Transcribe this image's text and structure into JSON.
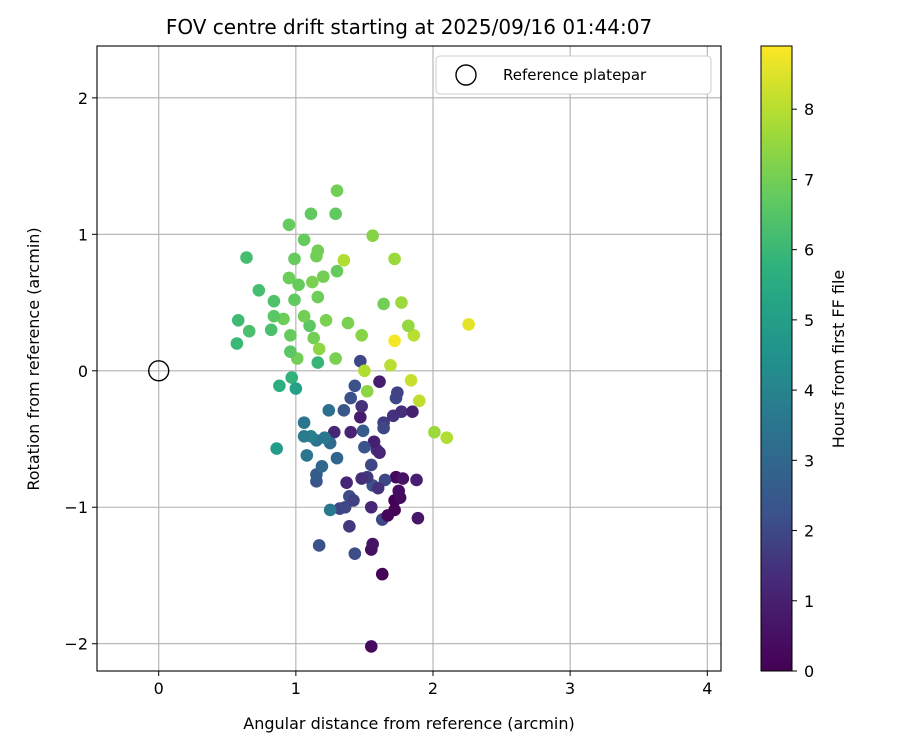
{
  "chart_data": {
    "type": "scatter",
    "title": "FOV centre drift starting at 2025/09/16 01:44:07",
    "xlabel": "Angular distance from reference (arcmin)",
    "ylabel": "Rotation from reference (arcmin)",
    "xlim": [
      -0.45,
      4.1
    ],
    "ylim": [
      -2.2,
      2.38
    ],
    "xticks": [
      0,
      1,
      2,
      3,
      4
    ],
    "xtick_labels": [
      "0",
      "1",
      "2",
      "3",
      "4"
    ],
    "yticks": [
      -2,
      -1,
      0,
      1,
      2
    ],
    "ytick_labels": [
      "−2",
      "−1",
      "0",
      "1",
      "2"
    ],
    "grid": true,
    "legend": {
      "location": "top-right",
      "entries": [
        "Reference platepar"
      ]
    },
    "reference_point": {
      "x": 0,
      "y": 0,
      "label": "Reference platepar"
    },
    "colorbar": {
      "label": "Hours from first FF file",
      "min": 0,
      "max": 8.9,
      "ticks": [
        0,
        1,
        2,
        3,
        4,
        5,
        6,
        7,
        8
      ],
      "colormap": "viridis"
    },
    "points": [
      {
        "x": 1.55,
        "y": -2.02,
        "h": 0.3
      },
      {
        "x": 1.63,
        "y": -1.49,
        "h": 0.1
      },
      {
        "x": 1.55,
        "y": -1.31,
        "h": 0.5
      },
      {
        "x": 1.56,
        "y": -1.27,
        "h": 0.6
      },
      {
        "x": 1.43,
        "y": -1.34,
        "h": 2.1
      },
      {
        "x": 1.17,
        "y": -1.28,
        "h": 2.2
      },
      {
        "x": 1.39,
        "y": -1.14,
        "h": 1.6
      },
      {
        "x": 1.63,
        "y": -1.09,
        "h": 2.0
      },
      {
        "x": 1.67,
        "y": -1.06,
        "h": 0.2
      },
      {
        "x": 1.72,
        "y": -1.02,
        "h": 0.1
      },
      {
        "x": 1.89,
        "y": -1.08,
        "h": 0.7
      },
      {
        "x": 1.55,
        "y": -1.0,
        "h": 1.2
      },
      {
        "x": 1.32,
        "y": -1.01,
        "h": 1.9
      },
      {
        "x": 1.36,
        "y": -1.0,
        "h": 2.0
      },
      {
        "x": 1.25,
        "y": -1.02,
        "h": 3.6
      },
      {
        "x": 1.72,
        "y": -0.95,
        "h": 0.0
      },
      {
        "x": 1.76,
        "y": -0.93,
        "h": 0.3
      },
      {
        "x": 1.75,
        "y": -0.88,
        "h": 0.4
      },
      {
        "x": 1.39,
        "y": -0.92,
        "h": 2.1
      },
      {
        "x": 1.42,
        "y": -0.95,
        "h": 1.8
      },
      {
        "x": 1.37,
        "y": -0.82,
        "h": 1.2
      },
      {
        "x": 1.15,
        "y": -0.81,
        "h": 2.3
      },
      {
        "x": 1.15,
        "y": -0.76,
        "h": 2.6
      },
      {
        "x": 1.19,
        "y": -0.7,
        "h": 3.0
      },
      {
        "x": 1.56,
        "y": -0.84,
        "h": 2.2
      },
      {
        "x": 1.52,
        "y": -0.78,
        "h": 1.6
      },
      {
        "x": 1.48,
        "y": -0.79,
        "h": 1.4
      },
      {
        "x": 1.73,
        "y": -0.78,
        "h": 0.3
      },
      {
        "x": 1.78,
        "y": -0.79,
        "h": 0.6
      },
      {
        "x": 1.88,
        "y": -0.8,
        "h": 1.0
      },
      {
        "x": 1.65,
        "y": -0.8,
        "h": 2.0
      },
      {
        "x": 1.6,
        "y": -0.86,
        "h": 1.5
      },
      {
        "x": 1.55,
        "y": -0.69,
        "h": 2.0
      },
      {
        "x": 1.3,
        "y": -0.64,
        "h": 2.9
      },
      {
        "x": 1.08,
        "y": -0.62,
        "h": 3.5
      },
      {
        "x": 0.86,
        "y": -0.57,
        "h": 4.9
      },
      {
        "x": 1.59,
        "y": -0.58,
        "h": 1.4
      },
      {
        "x": 1.61,
        "y": -0.6,
        "h": 1.2
      },
      {
        "x": 1.57,
        "y": -0.52,
        "h": 1.0
      },
      {
        "x": 1.5,
        "y": -0.56,
        "h": 2.3
      },
      {
        "x": 1.49,
        "y": -0.44,
        "h": 2.6
      },
      {
        "x": 1.4,
        "y": -0.45,
        "h": 1.1
      },
      {
        "x": 1.28,
        "y": -0.45,
        "h": 1.2
      },
      {
        "x": 1.25,
        "y": -0.53,
        "h": 3.1
      },
      {
        "x": 1.21,
        "y": -0.49,
        "h": 3.6
      },
      {
        "x": 1.15,
        "y": -0.51,
        "h": 3.4
      },
      {
        "x": 1.11,
        "y": -0.48,
        "h": 3.9
      },
      {
        "x": 1.06,
        "y": -0.48,
        "h": 3.7
      },
      {
        "x": 1.06,
        "y": -0.38,
        "h": 3.5
      },
      {
        "x": 1.24,
        "y": -0.29,
        "h": 3.3
      },
      {
        "x": 1.35,
        "y": -0.29,
        "h": 2.4
      },
      {
        "x": 1.47,
        "y": -0.34,
        "h": 0.9
      },
      {
        "x": 1.48,
        "y": -0.26,
        "h": 1.5
      },
      {
        "x": 1.4,
        "y": -0.2,
        "h": 2.2
      },
      {
        "x": 1.43,
        "y": -0.11,
        "h": 2.3
      },
      {
        "x": 1.64,
        "y": -0.38,
        "h": 1.7
      },
      {
        "x": 1.64,
        "y": -0.42,
        "h": 2.0
      },
      {
        "x": 1.71,
        "y": -0.33,
        "h": 1.5
      },
      {
        "x": 1.77,
        "y": -0.3,
        "h": 1.4
      },
      {
        "x": 1.85,
        "y": -0.3,
        "h": 1.0
      },
      {
        "x": 1.73,
        "y": -0.2,
        "h": 2.0
      },
      {
        "x": 1.74,
        "y": -0.16,
        "h": 1.9
      },
      {
        "x": 1.61,
        "y": -0.08,
        "h": 0.9
      },
      {
        "x": 1.52,
        "y": -0.15,
        "h": 7.4
      },
      {
        "x": 1.47,
        "y": 0.07,
        "h": 2.0
      },
      {
        "x": 1.5,
        "y": 0.0,
        "h": 7.9
      },
      {
        "x": 1.84,
        "y": -0.07,
        "h": 8.2
      },
      {
        "x": 1.9,
        "y": -0.22,
        "h": 8.1
      },
      {
        "x": 2.01,
        "y": -0.45,
        "h": 7.6
      },
      {
        "x": 2.1,
        "y": -0.49,
        "h": 7.9
      },
      {
        "x": 2.26,
        "y": 0.34,
        "h": 8.6
      },
      {
        "x": 1.72,
        "y": 0.22,
        "h": 8.8
      },
      {
        "x": 1.69,
        "y": 0.04,
        "h": 8.0
      },
      {
        "x": 1.86,
        "y": 0.26,
        "h": 8.0
      },
      {
        "x": 1.82,
        "y": 0.33,
        "h": 7.5
      },
      {
        "x": 1.77,
        "y": 0.5,
        "h": 7.6
      },
      {
        "x": 1.64,
        "y": 0.49,
        "h": 7.0
      },
      {
        "x": 1.48,
        "y": 0.26,
        "h": 7.3
      },
      {
        "x": 1.38,
        "y": 0.35,
        "h": 7.1
      },
      {
        "x": 1.29,
        "y": 0.09,
        "h": 7.1
      },
      {
        "x": 1.22,
        "y": 0.37,
        "h": 7.1
      },
      {
        "x": 1.17,
        "y": 0.16,
        "h": 7.4
      },
      {
        "x": 1.13,
        "y": 0.24,
        "h": 7.0
      },
      {
        "x": 1.16,
        "y": 0.06,
        "h": 5.9
      },
      {
        "x": 1.1,
        "y": 0.33,
        "h": 6.6
      },
      {
        "x": 1.06,
        "y": 0.4,
        "h": 7.0
      },
      {
        "x": 1.01,
        "y": 0.09,
        "h": 7.0
      },
      {
        "x": 0.97,
        "y": -0.05,
        "h": 5.8
      },
      {
        "x": 1.0,
        "y": -0.13,
        "h": 5.1
      },
      {
        "x": 0.88,
        "y": -0.11,
        "h": 5.7
      },
      {
        "x": 0.96,
        "y": 0.14,
        "h": 6.6
      },
      {
        "x": 0.96,
        "y": 0.26,
        "h": 6.8
      },
      {
        "x": 0.91,
        "y": 0.38,
        "h": 6.9
      },
      {
        "x": 0.82,
        "y": 0.3,
        "h": 6.3
      },
      {
        "x": 0.84,
        "y": 0.4,
        "h": 6.6
      },
      {
        "x": 0.84,
        "y": 0.51,
        "h": 6.4
      },
      {
        "x": 0.73,
        "y": 0.59,
        "h": 6.2
      },
      {
        "x": 0.66,
        "y": 0.29,
        "h": 6.3
      },
      {
        "x": 0.57,
        "y": 0.2,
        "h": 6.0
      },
      {
        "x": 0.58,
        "y": 0.37,
        "h": 6.1
      },
      {
        "x": 0.64,
        "y": 0.83,
        "h": 6.2
      },
      {
        "x": 0.95,
        "y": 0.68,
        "h": 6.9
      },
      {
        "x": 0.99,
        "y": 0.52,
        "h": 6.7
      },
      {
        "x": 1.02,
        "y": 0.63,
        "h": 6.8
      },
      {
        "x": 1.12,
        "y": 0.65,
        "h": 7.1
      },
      {
        "x": 1.16,
        "y": 0.54,
        "h": 6.9
      },
      {
        "x": 1.2,
        "y": 0.69,
        "h": 7.0
      },
      {
        "x": 1.3,
        "y": 0.73,
        "h": 6.8
      },
      {
        "x": 1.35,
        "y": 0.81,
        "h": 7.9
      },
      {
        "x": 1.15,
        "y": 0.84,
        "h": 7.0
      },
      {
        "x": 1.16,
        "y": 0.88,
        "h": 7.0
      },
      {
        "x": 0.99,
        "y": 0.82,
        "h": 6.8
      },
      {
        "x": 1.06,
        "y": 0.96,
        "h": 6.8
      },
      {
        "x": 0.95,
        "y": 1.07,
        "h": 6.8
      },
      {
        "x": 1.11,
        "y": 1.15,
        "h": 6.7
      },
      {
        "x": 1.29,
        "y": 1.15,
        "h": 6.7
      },
      {
        "x": 1.3,
        "y": 1.32,
        "h": 7.0
      },
      {
        "x": 1.56,
        "y": 0.99,
        "h": 7.3
      },
      {
        "x": 1.72,
        "y": 0.82,
        "h": 7.6
      }
    ]
  }
}
